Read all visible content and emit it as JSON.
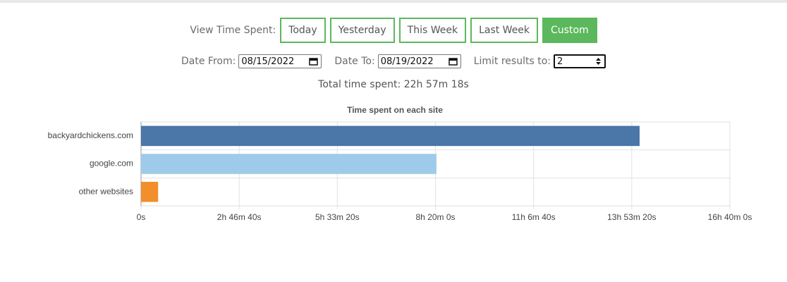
{
  "controls": {
    "view_label": "View Time Spent:",
    "buttons": [
      "Today",
      "Yesterday",
      "This Week",
      "Last Week",
      "Custom"
    ],
    "date_from_label": "Date From:",
    "date_from": "08/15/2022",
    "date_to_label": "Date To:",
    "date_to": "08/19/2022",
    "limit_label": "Limit results to:",
    "limit": 2
  },
  "total_time": "Total time spent: 22h 57m 18s",
  "chart_data": {
    "type": "hbar",
    "title": "Time spent on each site",
    "categories": [
      "backyardchickens.com",
      "google.com",
      "other websites"
    ],
    "values": [
      50800,
      30100,
      1738
    ],
    "colors": [
      "#4a76a8",
      "#9fcbea",
      "#f28e2b"
    ],
    "xlim": [
      0,
      60000
    ],
    "xticks": [
      {
        "value": 0,
        "label": "0s"
      },
      {
        "value": 10000,
        "label": "2h 46m 40s"
      },
      {
        "value": 20000,
        "label": "5h 33m 20s"
      },
      {
        "value": 30000,
        "label": "8h 20m 0s"
      },
      {
        "value": 40000,
        "label": "11h 6m 40s"
      },
      {
        "value": 50000,
        "label": "13h 53m 20s"
      },
      {
        "value": 60000,
        "label": "16h 40m 0s"
      }
    ],
    "grid": true
  }
}
